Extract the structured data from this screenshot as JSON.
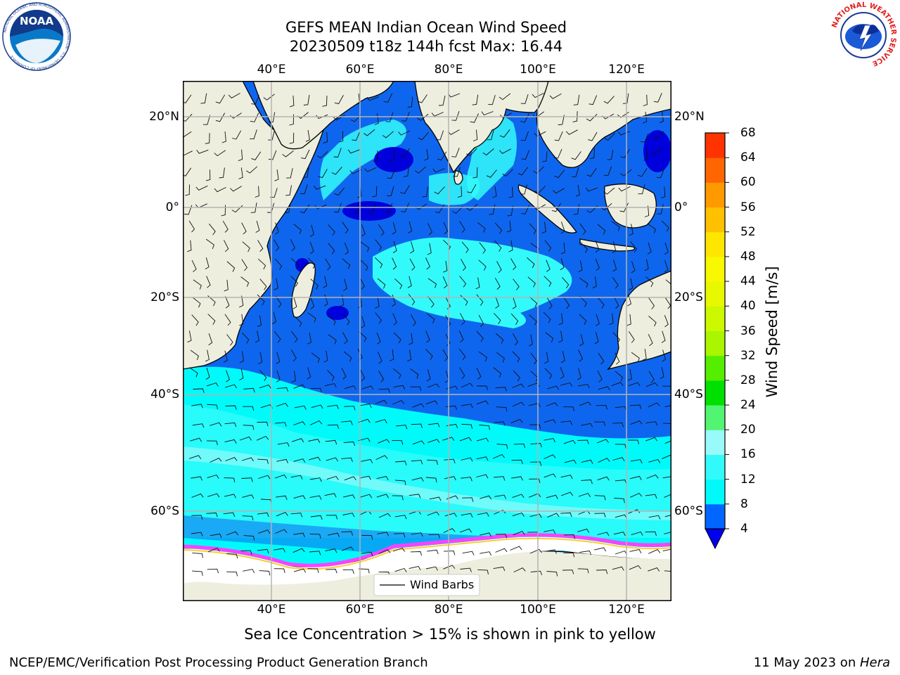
{
  "title": {
    "line1": "GEFS MEAN Indian Ocean Wind Speed",
    "line2": "20230509 t18z 144h fcst   Max: 16.44"
  },
  "map": {
    "lon_ticks": [
      "40°E",
      "60°E",
      "80°E",
      "100°E",
      "120°E"
    ],
    "lat_ticks_left": [
      "20°N",
      "0°",
      "20°S",
      "40°S",
      "60°S"
    ],
    "lat_ticks_right": [
      "20°N",
      "0°",
      "20°S",
      "40°S",
      "60°S"
    ],
    "legend_label": "Wind Barbs",
    "colors": {
      "land": "#eeeede",
      "ice": "#ffffff",
      "grid": "#b3b3b3",
      "speed_4_8": "#0f66ee",
      "speed_8_12": "#00fafa",
      "speed_12_16": "#33fafa",
      "speed_16_20": "#90fafa",
      "speed_lt_4": "#0000dd",
      "ice_edge": "#ff40ff"
    }
  },
  "colorbar": {
    "label": "Wind Speed [m/s]",
    "ticks": [
      "4",
      "8",
      "12",
      "16",
      "20",
      "24",
      "28",
      "32",
      "36",
      "40",
      "44",
      "48",
      "52",
      "56",
      "60",
      "64",
      "68"
    ],
    "colors": [
      "#0066ff",
      "#00fafa",
      "#33fafa",
      "#99fafa",
      "#52f572",
      "#00e000",
      "#55ee00",
      "#aaf500",
      "#ccf800",
      "#e8f800",
      "#f8f800",
      "#ffe600",
      "#ffc000",
      "#ff9900",
      "#ff6600",
      "#ff3300"
    ],
    "under_color": "#0000ee"
  },
  "note": "Sea Ice Concentration > 15% is shown in pink to yellow",
  "footer": {
    "left": "NCEP/EMC/Verification Post Processing Product Generation Branch",
    "right_prefix": "11 May 2023 on ",
    "right_host": "Hera"
  },
  "logos": {
    "noaa_text": "NOAA",
    "noaa_ring_text": "NATIONAL OCEANIC AND ATMOSPHERIC ADMINISTRATION · U.S. DEPARTMENT OF COMMERCE",
    "nws_ring_text": "NATIONAL WEATHER SERVICE"
  }
}
